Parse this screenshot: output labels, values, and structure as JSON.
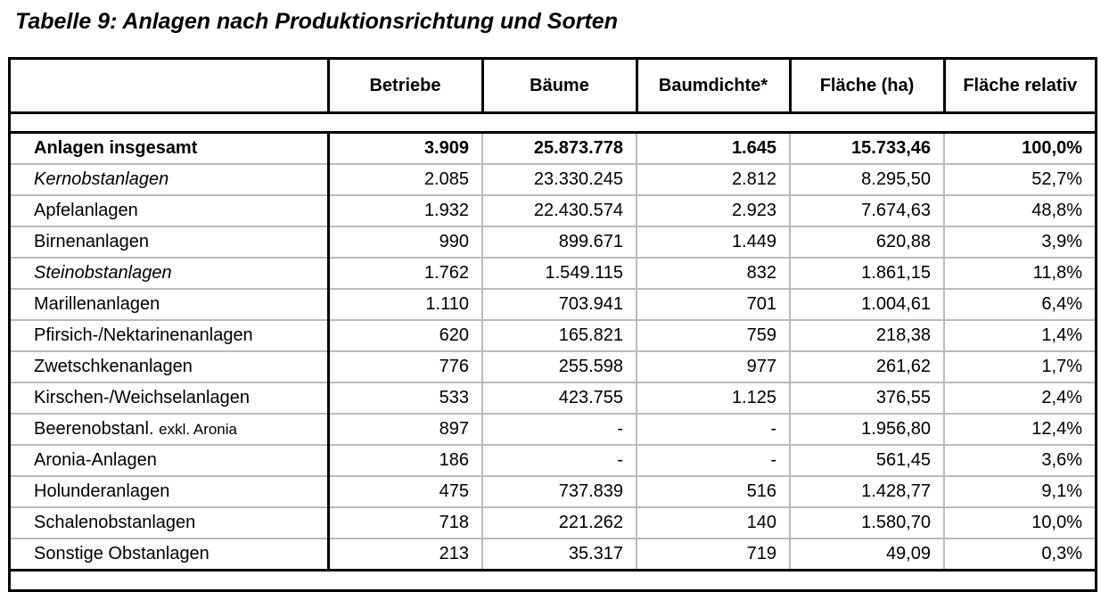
{
  "title": "Tabelle 9: Anlagen nach Produktionsrichtung und Sorten",
  "columns": [
    "",
    "Betriebe",
    "Bäume",
    "Baumdichte*",
    "Fläche (ha)",
    "Fläche relativ"
  ],
  "rows": [
    {
      "label": "Anlagen insgesamt",
      "style": "bold",
      "values": [
        "3.909",
        "25.873.778",
        "1.645",
        "15.733,46",
        "100,0%"
      ]
    },
    {
      "label": "Kernobstanlagen",
      "style": "italic",
      "values": [
        "2.085",
        "23.330.245",
        "2.812",
        "8.295,50",
        "52,7%"
      ]
    },
    {
      "label": "Apfelanlagen",
      "style": "",
      "values": [
        "1.932",
        "22.430.574",
        "2.923",
        "7.674,63",
        "48,8%"
      ]
    },
    {
      "label": "Birnenanlagen",
      "style": "",
      "values": [
        "990",
        "899.671",
        "1.449",
        "620,88",
        "3,9%"
      ]
    },
    {
      "label": "Steinobstanlagen",
      "style": "italic",
      "values": [
        "1.762",
        "1.549.115",
        "832",
        "1.861,15",
        "11,8%"
      ]
    },
    {
      "label": "Marillenanlagen",
      "style": "",
      "values": [
        "1.110",
        "703.941",
        "701",
        "1.004,61",
        "6,4%"
      ]
    },
    {
      "label": "Pfirsich-/Nektarinenanlagen",
      "style": "",
      "values": [
        "620",
        "165.821",
        "759",
        "218,38",
        "1,4%"
      ]
    },
    {
      "label": "Zwetschkenanlagen",
      "style": "",
      "values": [
        "776",
        "255.598",
        "977",
        "261,62",
        "1,7%"
      ]
    },
    {
      "label": "Kirschen-/Weichselanlagen",
      "style": "",
      "values": [
        "533",
        "423.755",
        "1.125",
        "376,55",
        "2,4%"
      ]
    },
    {
      "label": "Beerenobstanl.",
      "label_suffix": "exkl. Aronia",
      "style": "",
      "values": [
        "897",
        "-",
        "-",
        "1.956,80",
        "12,4%"
      ]
    },
    {
      "label": "Aronia-Anlagen",
      "style": "",
      "values": [
        "186",
        "-",
        "-",
        "561,45",
        "3,6%"
      ]
    },
    {
      "label": "Holunderanlagen",
      "style": "",
      "values": [
        "475",
        "737.839",
        "516",
        "1.428,77",
        "9,1%"
      ]
    },
    {
      "label": "Schalenobstanlagen",
      "style": "",
      "values": [
        "718",
        "221.262",
        "140",
        "1.580,70",
        "10,0%"
      ]
    },
    {
      "label": "Sonstige Obstanlagen",
      "style": "",
      "values": [
        "213",
        "35.317",
        "719",
        "49,09",
        "0,3%"
      ]
    }
  ]
}
